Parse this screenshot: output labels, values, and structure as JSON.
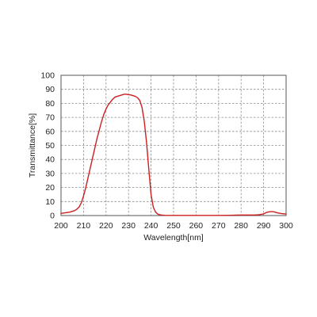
{
  "chart_data": {
    "type": "line",
    "title": "",
    "xlabel": "Wavelength[nm]",
    "ylabel": "Transmittance[%]",
    "xlim": [
      200,
      300
    ],
    "ylim": [
      0,
      100
    ],
    "xticks": [
      200,
      210,
      220,
      230,
      240,
      250,
      260,
      270,
      280,
      290,
      300
    ],
    "yticks": [
      0,
      10,
      20,
      30,
      40,
      50,
      60,
      70,
      80,
      90,
      100
    ],
    "grid": true,
    "legend": "none",
    "series": [
      {
        "color": "#cc1f1f",
        "x": [
          200,
          202,
          204,
          206,
          207,
          208,
          209,
          210,
          211,
          212,
          213,
          214,
          215,
          216,
          217,
          218,
          219,
          220,
          221,
          222,
          223,
          224,
          225,
          226,
          227,
          228,
          229,
          230,
          231,
          232,
          233,
          234,
          235,
          236,
          237,
          238,
          239,
          240,
          241,
          242,
          243,
          244,
          245,
          246,
          248,
          250,
          255,
          260,
          265,
          270,
          275,
          278,
          280,
          283,
          286,
          288,
          290,
          291,
          292,
          293,
          294,
          295,
          296,
          298,
          300
        ],
        "y": [
          1.5,
          2,
          2.5,
          3.5,
          4.5,
          6,
          9,
          14,
          20,
          27,
          34,
          41,
          48,
          55,
          61,
          67,
          72,
          76,
          79,
          81,
          83,
          84.5,
          85,
          85.5,
          86,
          86.5,
          86.5,
          86.2,
          86,
          85.5,
          85,
          84,
          82,
          77,
          67,
          52,
          33,
          15,
          6,
          2.5,
          1,
          0.5,
          0.3,
          0.2,
          0.1,
          0.1,
          0.1,
          0.1,
          0.1,
          0.1,
          0.2,
          0.3,
          0.4,
          0.4,
          0.4,
          0.6,
          1.2,
          2,
          2.5,
          2.8,
          2.8,
          2.5,
          2,
          1.4,
          1.1
        ]
      }
    ]
  }
}
